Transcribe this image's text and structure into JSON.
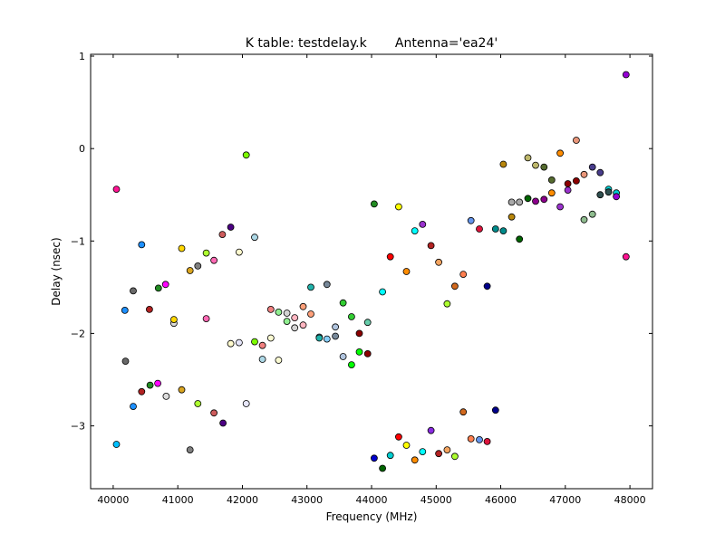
{
  "chart_data": {
    "type": "scatter",
    "title": "K table: testdelay.k       Antenna='ea24'",
    "xlabel": "Frequency (MHz)",
    "ylabel": "Delay (nsec)",
    "xlim": [
      39650,
      48350
    ],
    "ylim": [
      -3.68,
      1.02
    ],
    "xticks": [
      40000,
      41000,
      42000,
      43000,
      44000,
      45000,
      46000,
      47000,
      48000
    ],
    "xtick_labels": [
      "40000",
      "41000",
      "42000",
      "43000",
      "44000",
      "45000",
      "46000",
      "47000",
      "48000"
    ],
    "yticks": [
      1,
      0,
      -1,
      -2,
      -3
    ],
    "ytick_labels": [
      "1",
      "0",
      "−1",
      "−2",
      "−3"
    ],
    "grid": false,
    "legend": "none",
    "points": [
      {
        "x": 40050,
        "y": -0.44,
        "color": "#ff1493"
      },
      {
        "x": 40050,
        "y": -3.2,
        "color": "#00bfff"
      },
      {
        "x": 40180,
        "y": -1.75,
        "color": "#1e90ff"
      },
      {
        "x": 40190,
        "y": -2.3,
        "color": "#696969"
      },
      {
        "x": 40310,
        "y": -1.54,
        "color": "#696969"
      },
      {
        "x": 40310,
        "y": -2.79,
        "color": "#1e90ff"
      },
      {
        "x": 40440,
        "y": -1.04,
        "color": "#1e90ff"
      },
      {
        "x": 40440,
        "y": -2.63,
        "color": "#b22222"
      },
      {
        "x": 40560,
        "y": -1.74,
        "color": "#b22222"
      },
      {
        "x": 40570,
        "y": -2.56,
        "color": "#228b22"
      },
      {
        "x": 40690,
        "y": -2.54,
        "color": "#ff00ff"
      },
      {
        "x": 40700,
        "y": -1.51,
        "color": "#228b22"
      },
      {
        "x": 40810,
        "y": -1.47,
        "color": "#ff00ff"
      },
      {
        "x": 40820,
        "y": -2.68,
        "color": "#dcdcdc"
      },
      {
        "x": 40940,
        "y": -1.89,
        "color": "#dcdcdc"
      },
      {
        "x": 40940,
        "y": -1.85,
        "color": "#ffd700"
      },
      {
        "x": 41060,
        "y": -1.08,
        "color": "#ffd700"
      },
      {
        "x": 41060,
        "y": -2.61,
        "color": "#daa520"
      },
      {
        "x": 41190,
        "y": -1.32,
        "color": "#daa520"
      },
      {
        "x": 41190,
        "y": -3.26,
        "color": "#808080"
      },
      {
        "x": 41310,
        "y": -1.27,
        "color": "#808080"
      },
      {
        "x": 41310,
        "y": -2.76,
        "color": "#adff2f"
      },
      {
        "x": 41440,
        "y": -1.13,
        "color": "#adff2f"
      },
      {
        "x": 41440,
        "y": -1.84,
        "color": "#ff69b4"
      },
      {
        "x": 41560,
        "y": -1.21,
        "color": "#ff69b4"
      },
      {
        "x": 41560,
        "y": -2.86,
        "color": "#cd5c5c"
      },
      {
        "x": 41690,
        "y": -0.93,
        "color": "#cd5c5c"
      },
      {
        "x": 41700,
        "y": -2.97,
        "color": "#4b0082"
      },
      {
        "x": 41820,
        "y": -0.85,
        "color": "#4b0082"
      },
      {
        "x": 41820,
        "y": -2.11,
        "color": "#fffacd"
      },
      {
        "x": 41950,
        "y": -1.12,
        "color": "#fffacd"
      },
      {
        "x": 41950,
        "y": -2.1,
        "color": "#e6e6fa"
      },
      {
        "x": 42060,
        "y": -0.07,
        "color": "#7cfc00"
      },
      {
        "x": 42060,
        "y": -2.76,
        "color": "#e6e6fa"
      },
      {
        "x": 42190,
        "y": -0.96,
        "color": "#add8e6"
      },
      {
        "x": 42190,
        "y": -2.09,
        "color": "#7cfc00"
      },
      {
        "x": 42310,
        "y": -2.13,
        "color": "#f08080"
      },
      {
        "x": 42310,
        "y": -2.28,
        "color": "#add8e6"
      },
      {
        "x": 42440,
        "y": -1.74,
        "color": "#f08080"
      },
      {
        "x": 42440,
        "y": -2.05,
        "color": "#fafad2"
      },
      {
        "x": 42560,
        "y": -1.77,
        "color": "#90ee90"
      },
      {
        "x": 42560,
        "y": -2.29,
        "color": "#fafad2"
      },
      {
        "x": 42690,
        "y": -1.78,
        "color": "#d3d3d3"
      },
      {
        "x": 42690,
        "y": -1.87,
        "color": "#90ee90"
      },
      {
        "x": 42810,
        "y": -1.83,
        "color": "#ffb6c1"
      },
      {
        "x": 42810,
        "y": -1.94,
        "color": "#d3d3d3"
      },
      {
        "x": 42940,
        "y": -1.71,
        "color": "#ffa07a"
      },
      {
        "x": 42940,
        "y": -1.91,
        "color": "#ffb6c1"
      },
      {
        "x": 43060,
        "y": -1.5,
        "color": "#20b2aa"
      },
      {
        "x": 43060,
        "y": -1.79,
        "color": "#ffa07a"
      },
      {
        "x": 43190,
        "y": -2.04,
        "color": "#87cefa"
      },
      {
        "x": 43190,
        "y": -2.05,
        "color": "#20b2aa"
      },
      {
        "x": 43310,
        "y": -1.47,
        "color": "#778899"
      },
      {
        "x": 43310,
        "y": -2.06,
        "color": "#87cefa"
      },
      {
        "x": 43440,
        "y": -1.93,
        "color": "#b0c4de"
      },
      {
        "x": 43440,
        "y": -2.03,
        "color": "#778899"
      },
      {
        "x": 43560,
        "y": -1.67,
        "color": "#32cd32"
      },
      {
        "x": 43560,
        "y": -2.25,
        "color": "#b0c4de"
      },
      {
        "x": 43690,
        "y": -1.82,
        "color": "#32cd32"
      },
      {
        "x": 43690,
        "y": -2.34,
        "color": "#00ff00"
      },
      {
        "x": 43810,
        "y": -2.0,
        "color": "#8b0000"
      },
      {
        "x": 43810,
        "y": -2.2,
        "color": "#00ff00"
      },
      {
        "x": 43940,
        "y": -1.88,
        "color": "#66cdaa"
      },
      {
        "x": 43940,
        "y": -2.22,
        "color": "#8b0000"
      },
      {
        "x": 44040,
        "y": -0.6,
        "color": "#228b22"
      },
      {
        "x": 44040,
        "y": -3.35,
        "color": "#0000cd"
      },
      {
        "x": 44170,
        "y": -1.55,
        "color": "#00ffff"
      },
      {
        "x": 44170,
        "y": -3.46,
        "color": "#006400"
      },
      {
        "x": 44290,
        "y": -1.17,
        "color": "#ff0000"
      },
      {
        "x": 44290,
        "y": -3.32,
        "color": "#00ced1"
      },
      {
        "x": 44420,
        "y": -0.63,
        "color": "#ffff00"
      },
      {
        "x": 44420,
        "y": -3.12,
        "color": "#ff0000"
      },
      {
        "x": 44540,
        "y": -1.33,
        "color": "#ff8c00"
      },
      {
        "x": 44540,
        "y": -3.21,
        "color": "#ffff00"
      },
      {
        "x": 44670,
        "y": -0.89,
        "color": "#00ffff"
      },
      {
        "x": 44670,
        "y": -3.37,
        "color": "#ff8c00"
      },
      {
        "x": 44790,
        "y": -0.82,
        "color": "#9932cc"
      },
      {
        "x": 44790,
        "y": -3.28,
        "color": "#00ffff"
      },
      {
        "x": 44920,
        "y": -1.05,
        "color": "#b22222"
      },
      {
        "x": 44920,
        "y": -3.05,
        "color": "#8a2be2"
      },
      {
        "x": 45040,
        "y": -1.23,
        "color": "#f4a460"
      },
      {
        "x": 45040,
        "y": -3.3,
        "color": "#b22222"
      },
      {
        "x": 45170,
        "y": -1.68,
        "color": "#adff2f"
      },
      {
        "x": 45170,
        "y": -3.26,
        "color": "#f4a460"
      },
      {
        "x": 45290,
        "y": -1.49,
        "color": "#d2691e"
      },
      {
        "x": 45290,
        "y": -3.33,
        "color": "#adff2f"
      },
      {
        "x": 45420,
        "y": -1.36,
        "color": "#ff7f50"
      },
      {
        "x": 45420,
        "y": -2.85,
        "color": "#d2691e"
      },
      {
        "x": 45540,
        "y": -0.78,
        "color": "#6495ed"
      },
      {
        "x": 45540,
        "y": -3.14,
        "color": "#ff7f50"
      },
      {
        "x": 45670,
        "y": -0.87,
        "color": "#dc143c"
      },
      {
        "x": 45670,
        "y": -3.15,
        "color": "#6495ed"
      },
      {
        "x": 45790,
        "y": -1.49,
        "color": "#00008b"
      },
      {
        "x": 45790,
        "y": -3.17,
        "color": "#dc143c"
      },
      {
        "x": 45920,
        "y": -0.87,
        "color": "#008b8b"
      },
      {
        "x": 45920,
        "y": -2.83,
        "color": "#00008b"
      },
      {
        "x": 46040,
        "y": -0.17,
        "color": "#b8860b"
      },
      {
        "x": 46040,
        "y": -0.89,
        "color": "#008b8b"
      },
      {
        "x": 46170,
        "y": -0.58,
        "color": "#a9a9a9"
      },
      {
        "x": 46170,
        "y": -0.74,
        "color": "#b8860b"
      },
      {
        "x": 46290,
        "y": -0.58,
        "color": "#a9a9a9"
      },
      {
        "x": 46290,
        "y": -0.98,
        "color": "#006400"
      },
      {
        "x": 46420,
        "y": -0.1,
        "color": "#bdb76b"
      },
      {
        "x": 46420,
        "y": -0.54,
        "color": "#006400"
      },
      {
        "x": 46540,
        "y": -0.18,
        "color": "#bdb76b"
      },
      {
        "x": 46540,
        "y": -0.57,
        "color": "#8b008b"
      },
      {
        "x": 46670,
        "y": -0.2,
        "color": "#556b2f"
      },
      {
        "x": 46670,
        "y": -0.55,
        "color": "#8b008b"
      },
      {
        "x": 46790,
        "y": -0.34,
        "color": "#556b2f"
      },
      {
        "x": 46790,
        "y": -0.48,
        "color": "#ff8c00"
      },
      {
        "x": 46920,
        "y": -0.05,
        "color": "#ff8c00"
      },
      {
        "x": 46920,
        "y": -0.63,
        "color": "#9932cc"
      },
      {
        "x": 47040,
        "y": -0.38,
        "color": "#8b0000"
      },
      {
        "x": 47040,
        "y": -0.45,
        "color": "#9932cc"
      },
      {
        "x": 47170,
        "y": 0.09,
        "color": "#e9967a"
      },
      {
        "x": 47170,
        "y": -0.35,
        "color": "#8b0000"
      },
      {
        "x": 47290,
        "y": -0.28,
        "color": "#e9967a"
      },
      {
        "x": 47290,
        "y": -0.77,
        "color": "#8fbc8f"
      },
      {
        "x": 47420,
        "y": -0.2,
        "color": "#483d8b"
      },
      {
        "x": 47420,
        "y": -0.71,
        "color": "#8fbc8f"
      },
      {
        "x": 47540,
        "y": -0.26,
        "color": "#483d8b"
      },
      {
        "x": 47540,
        "y": -0.5,
        "color": "#2f4f4f"
      },
      {
        "x": 47670,
        "y": -0.44,
        "color": "#00ced1"
      },
      {
        "x": 47670,
        "y": -0.47,
        "color": "#2f4f4f"
      },
      {
        "x": 47790,
        "y": -0.48,
        "color": "#00ced1"
      },
      {
        "x": 47790,
        "y": -0.52,
        "color": "#9400d3"
      },
      {
        "x": 47940,
        "y": 0.8,
        "color": "#9400d3"
      },
      {
        "x": 47940,
        "y": -1.17,
        "color": "#ff1493"
      }
    ]
  }
}
